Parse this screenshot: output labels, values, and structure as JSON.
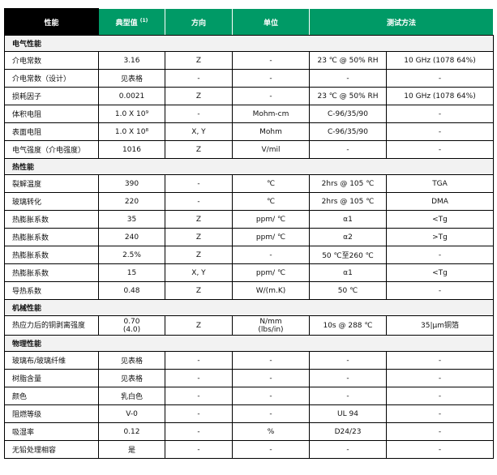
{
  "colors": {
    "header": "#009a66",
    "header_first": "#000000",
    "section_bg": "#f2f2f2"
  },
  "header": {
    "property": "性能",
    "typical": "典型值",
    "typical_note": "(1)",
    "direction": "方向",
    "unit": "单位",
    "test_method": "测试方法"
  },
  "sections": [
    {
      "title": "电气性能",
      "rows": [
        [
          "介电常数",
          "3.16",
          "Z",
          "-",
          "23 ℃ @ 50% RH",
          "10 GHz (1078 64%)"
        ],
        [
          "介电常数（设计）",
          "见表格",
          "-",
          "-",
          "-",
          "-"
        ],
        [
          "损耗因子",
          "0.0021",
          "Z",
          "-",
          "23 ℃ @ 50% RH",
          "10 GHz (1078 64%)"
        ],
        [
          "体积电阻",
          "1.0 X 10⁹",
          "-",
          "Mohm-cm",
          "C-96/35/90",
          "-"
        ],
        [
          "表面电阻",
          "1.0 X 10⁸",
          "X, Y",
          "Mohm",
          "C-96/35/90",
          "-"
        ],
        [
          "电气强度（介电强度）",
          "1016",
          "Z",
          "V/mil",
          "-",
          "-"
        ]
      ]
    },
    {
      "title": "热性能",
      "rows": [
        [
          "裂解温度",
          "390",
          "-",
          "℃",
          "2hrs @ 105 ℃",
          "TGA"
        ],
        [
          "玻璃转化",
          "220",
          "-",
          "℃",
          "2hrs @ 105 ℃",
          "DMA"
        ],
        [
          "热膨胀系数",
          "35",
          "Z",
          "ppm/ ℃",
          "α1",
          "<Tg"
        ],
        [
          "热膨胀系数",
          "240",
          "Z",
          "ppm/ ℃",
          "α2",
          ">Tg"
        ],
        [
          "热膨胀系数",
          "2.5%",
          "Z",
          "-",
          "50 ℃至260 ℃",
          "-"
        ],
        [
          "热膨胀系数",
          "15",
          "X, Y",
          "ppm/ ℃",
          "α1",
          "<Tg"
        ],
        [
          "导热系数",
          "0.48",
          "Z",
          "W/(m.K)",
          "50 ℃",
          "-"
        ]
      ]
    },
    {
      "title": "机械性能",
      "rows": [
        [
          "热应力后的铜剥离强度",
          "0.70\n(4.0)",
          "Z",
          "N/mm\n(lbs/in)",
          "10s @ 288 ℃",
          "35|μm铜箔"
        ]
      ]
    },
    {
      "title": "物理性能",
      "rows": [
        [
          "玻璃布/玻璃纤维",
          "见表格",
          "-",
          "-",
          "-",
          "-"
        ],
        [
          "树脂含量",
          "见表格",
          "-",
          "-",
          "-",
          "-"
        ],
        [
          "颜色",
          "乳白色",
          "-",
          "-",
          "-",
          "-"
        ],
        [
          "阻燃等级",
          "V-0",
          "-",
          "-",
          "UL 94",
          "-"
        ],
        [
          "吸湿率",
          "0.12",
          "-",
          "%",
          "D24/23",
          "-"
        ],
        [
          "无铅处理相容",
          "是",
          "-",
          "-",
          "-",
          "-"
        ]
      ]
    }
  ]
}
